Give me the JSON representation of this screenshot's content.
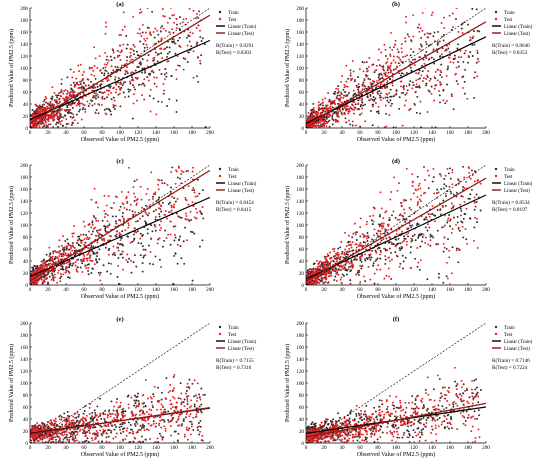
{
  "colors": {
    "train": "#2b2b2b",
    "test": "#e0242a",
    "linear_train": "#000000",
    "linear_test": "#8b1a10",
    "identity": "#000000"
  },
  "chart_data": [
    {
      "type": "scatter",
      "title": "(a)",
      "xlabel": "Observed Value of PM2.5 (ppm)",
      "ylabel": "Predicted Value of PM2.5 (ppm)",
      "xlim": [
        0,
        200
      ],
      "ylim": [
        0,
        200
      ],
      "xticks": [
        "0",
        "20",
        "40",
        "60",
        "80",
        "100",
        "120",
        "140",
        "160",
        "180",
        "200"
      ],
      "yticks": [
        "0",
        "20",
        "40",
        "60",
        "80",
        "100",
        "120",
        "140",
        "160",
        "180",
        "200"
      ],
      "legend": [
        "Train",
        "Test",
        "Linear (Train)",
        "Linear (Test)"
      ],
      "legend_position": "top-right",
      "r_train": "R(Train)  = 0.8291",
      "r_test": "R(Test)    = 0.8303",
      "fit_train": {
        "slope": 0.66,
        "intercept": 14
      },
      "fit_test": {
        "slope": 0.9,
        "intercept": 8
      },
      "series": [
        {
          "name": "Train",
          "spread": 0.26,
          "max_x": 200
        },
        {
          "name": "Test",
          "spread": 0.3,
          "max_x": 200
        }
      ]
    },
    {
      "type": "scatter",
      "title": "(b)",
      "xlabel": "Observed Value of PM2.5 (ppm)",
      "ylabel": "Predicted Value of PM2.5 (ppm)",
      "xlim": [
        0,
        200
      ],
      "ylim": [
        0,
        200
      ],
      "xticks": [
        "0",
        "20",
        "40",
        "60",
        "80",
        "100",
        "120",
        "140",
        "160",
        "180",
        "200"
      ],
      "yticks": [
        "0",
        "20",
        "40",
        "60",
        "80",
        "100",
        "120",
        "140",
        "160",
        "180",
        "200"
      ],
      "legend": [
        "Train",
        "Test",
        "Linear (Train)",
        "Linear (Test)"
      ],
      "legend_position": "top-right",
      "r_train": "R(Train)  = 0.8640",
      "r_test": "R(Test)    = 0.8353",
      "fit_train": {
        "slope": 0.72,
        "intercept": 8
      },
      "fit_test": {
        "slope": 0.86,
        "intercept": 5
      },
      "series": [
        {
          "name": "Train",
          "spread": 0.24,
          "max_x": 200
        },
        {
          "name": "Test",
          "spread": 0.28,
          "max_x": 200
        }
      ]
    },
    {
      "type": "scatter",
      "title": "(c)",
      "xlabel": "Observed Value of PM2.5 (ppm)",
      "ylabel": "Predicted Value of PM2.5 (ppm)",
      "xlim": [
        0,
        200
      ],
      "ylim": [
        0,
        200
      ],
      "xticks": [
        "0",
        "20",
        "40",
        "60",
        "80",
        "100",
        "120",
        "140",
        "160",
        "180",
        "200"
      ],
      "yticks": [
        "0",
        "20",
        "40",
        "60",
        "80",
        "100",
        "120",
        "140",
        "160",
        "180",
        "200"
      ],
      "legend": [
        "Train",
        "Test",
        "Linear (Train)",
        "Linear (Test)"
      ],
      "legend_position": "top-right",
      "r_train": "R(Train)  = 0.8454",
      "r_test": "R(Test)    = 0.8415",
      "fit_train": {
        "slope": 0.66,
        "intercept": 14
      },
      "fit_test": {
        "slope": 0.92,
        "intercept": 7
      },
      "series": [
        {
          "name": "Train",
          "spread": 0.25,
          "max_x": 200
        },
        {
          "name": "Test",
          "spread": 0.29,
          "max_x": 200
        }
      ]
    },
    {
      "type": "scatter",
      "title": "(d)",
      "xlabel": "Observed Value of PM2.5 (ppm)",
      "ylabel": "Predicted Value of PM2.5 (ppm)",
      "xlim": [
        0,
        200
      ],
      "ylim": [
        0,
        200
      ],
      "xticks": [
        "0",
        "20",
        "40",
        "60",
        "80",
        "100",
        "120",
        "140",
        "160",
        "180",
        "200"
      ],
      "yticks": [
        "0",
        "20",
        "40",
        "60",
        "80",
        "100",
        "120",
        "140",
        "160",
        "180",
        "200"
      ],
      "legend": [
        "Train",
        "Test",
        "Linear (Train)",
        "Linear (Test)"
      ],
      "legend_position": "top-right",
      "r_train": "R(Train)  = 0.8534",
      "r_test": "R(Test)    = 0.8197",
      "fit_train": {
        "slope": 0.7,
        "intercept": 10
      },
      "fit_test": {
        "slope": 0.86,
        "intercept": 6
      },
      "series": [
        {
          "name": "Train",
          "spread": 0.25,
          "max_x": 200
        },
        {
          "name": "Test",
          "spread": 0.3,
          "max_x": 200
        }
      ]
    },
    {
      "type": "scatter",
      "title": "(e)",
      "xlabel": "Observed Value of PM2.5 (ppm)",
      "ylabel": "Predicted Value of PM2.5 (ppm)",
      "xlim": [
        0,
        200
      ],
      "ylim": [
        0,
        200
      ],
      "xticks": [
        "0",
        "20",
        "40",
        "60",
        "80",
        "100",
        "120",
        "140",
        "160",
        "180",
        "200"
      ],
      "yticks": [
        "0",
        "20",
        "40",
        "60",
        "80",
        "100",
        "120",
        "140",
        "160",
        "180",
        "200"
      ],
      "legend": [
        "Train",
        "Test",
        "Linear (Train)",
        "Linear (Test)"
      ],
      "legend_position": "top-right",
      "r_train": "R(Train)  = 0.7155",
      "r_test": "R(Test)    = 0.7316",
      "fit_train": {
        "slope": 0.21,
        "intercept": 16
      },
      "fit_test": {
        "slope": 0.22,
        "intercept": 15
      },
      "series": [
        {
          "name": "Train",
          "spread": 0.12,
          "max_x": 200
        },
        {
          "name": "Test",
          "spread": 0.12,
          "max_x": 200
        }
      ]
    },
    {
      "type": "scatter",
      "title": "(f)",
      "xlabel": "Observed Value of PM2.5 (ppm)",
      "ylabel": "Predicted Value of PM2.5 (ppm)",
      "xlim": [
        0,
        200
      ],
      "ylim": [
        0,
        200
      ],
      "xticks": [
        "0",
        "20",
        "40",
        "60",
        "80",
        "100",
        "120",
        "140",
        "160",
        "180",
        "200"
      ],
      "yticks": [
        "0",
        "20",
        "40",
        "60",
        "80",
        "100",
        "120",
        "140",
        "160",
        "180",
        "200"
      ],
      "legend": [
        "Train",
        "Test",
        "Linear (Train)",
        "Linear (Test)"
      ],
      "legend_position": "top-right",
      "r_train": "R(Train)  = 0.7146",
      "r_test": "R(Test)    = 0.7224",
      "fit_train": {
        "slope": 0.22,
        "intercept": 16
      },
      "fit_test": {
        "slope": 0.28,
        "intercept": 10
      },
      "series": [
        {
          "name": "Train",
          "spread": 0.12,
          "max_x": 200
        },
        {
          "name": "Test",
          "spread": 0.12,
          "max_x": 200
        }
      ]
    }
  ]
}
